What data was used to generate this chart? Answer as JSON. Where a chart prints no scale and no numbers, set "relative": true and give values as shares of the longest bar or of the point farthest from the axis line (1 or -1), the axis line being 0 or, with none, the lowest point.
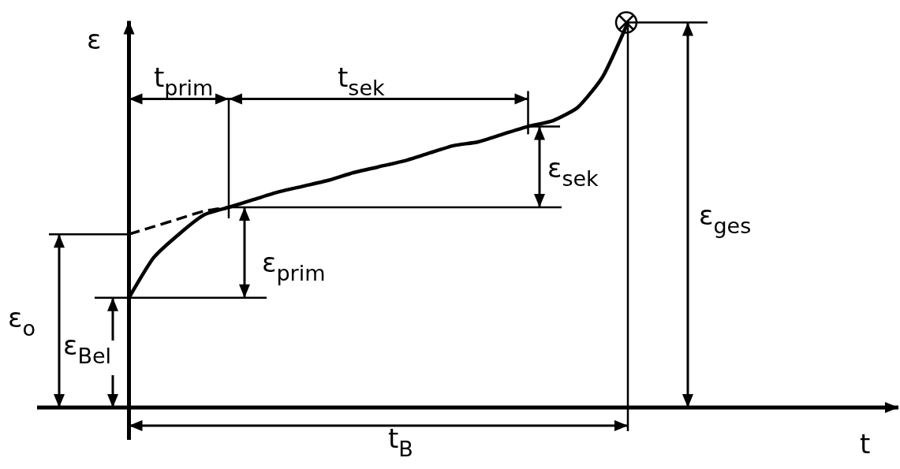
{
  "chart_data": {
    "type": "line",
    "relative": true,
    "ylabel": "ε",
    "marker": "none",
    "line_style": "solid",
    "grid": false,
    "categories": [
      null,
      null,
      null,
      null,
      null,
      null,
      null,
      null,
      null,
      null,
      null,
      null,
      null,
      null,
      null,
      null,
      null,
      null,
      null,
      null,
      null
    ],
    "series": [
      {
        "color": "#000000",
        "values": [
          0.285,
          0.39,
          0.45,
          0.5,
          0.52,
          0.54,
          0.56,
          0.575,
          0.59,
          0.61,
          0.625,
          0.64,
          0.66,
          0.68,
          0.69,
          0.71,
          0.73,
          0.745,
          0.78,
          0.86,
          1
        ]
      },
      {
        "color": "#000000",
        "line_style": "dashed",
        "values": [
          0.45,
          0.47,
          0.49,
          0.51,
          0.52,
          null,
          null,
          null,
          null,
          null,
          null,
          null,
          null,
          null,
          null,
          null,
          null,
          null,
          null,
          null,
          null
        ]
      }
    ],
    "annotations": [
      "t$_{prim}$",
      "t$_{sek}$",
      "ε$_{sek}$",
      "ε$_{ges}$",
      "ε$_{prim}$",
      "ε$_{o}$",
      "ε$_{Bel}$",
      "t$_{B}$",
      "t"
    ]
  }
}
